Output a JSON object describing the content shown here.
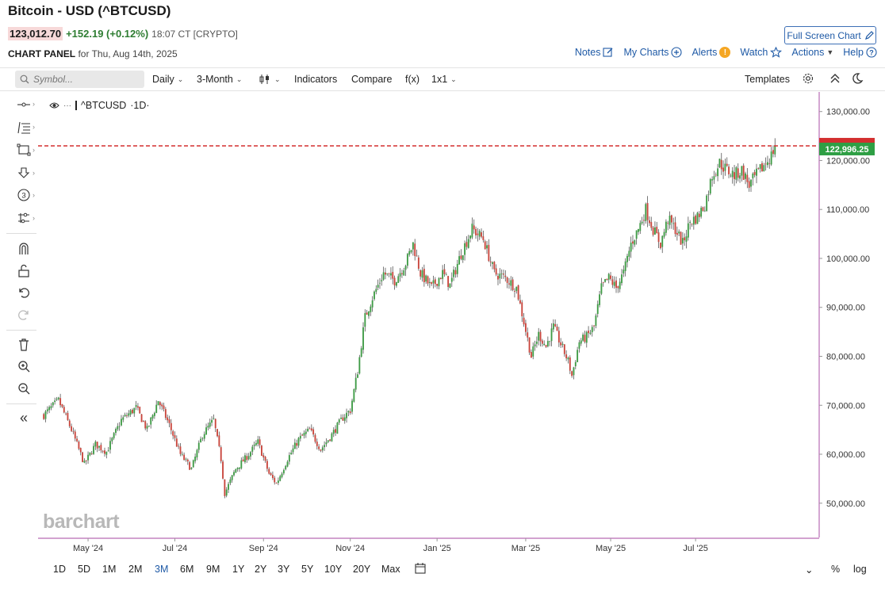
{
  "header": {
    "title": "Bitcoin - USD (^BTCUSD)",
    "price": "123,012.70",
    "change": "+152.19 (+0.12%)",
    "time": "18:07 CT [CRYPTO]",
    "fullscreen_label": "Full Screen Chart"
  },
  "panel": {
    "label": "CHART PANEL",
    "date": "for Thu, Aug 14th, 2025"
  },
  "top_links": {
    "notes": "Notes",
    "my_charts": "My Charts",
    "alerts": "Alerts",
    "alerts_badge": "!",
    "watch": "Watch",
    "actions": "Actions",
    "help": "Help"
  },
  "toolbar": {
    "symbol_placeholder": "Symbol...",
    "interval": "Daily",
    "period": "3-Month",
    "indicators": "Indicators",
    "compare": "Compare",
    "fx": "f(x)",
    "layout": "1x1",
    "templates": "Templates"
  },
  "legend": {
    "symbol": "^BTCUSD",
    "interval": "·1D·"
  },
  "watermark": "barchart",
  "bottom": {
    "ranges": [
      "1D",
      "5D",
      "1M",
      "2M",
      "3M",
      "6M",
      "9M",
      "1Y",
      "2Y",
      "3Y",
      "5Y",
      "10Y",
      "20Y",
      "Max"
    ],
    "active_range": "3M",
    "percent": "%",
    "log": "log"
  },
  "colors": {
    "up": "#3f9b46",
    "down": "#c9463d",
    "price_line": "#d32f2f",
    "price_tag_bg": "#2e9f44",
    "axis_line": "#b86bb5",
    "accent": "#1f5aa6"
  },
  "chart_data": {
    "type": "candlestick",
    "current_price_label": "122,996.25",
    "current_price": 122996.25,
    "ylim": [
      43000,
      134000
    ],
    "y_ticks": [
      {
        "value": 50000,
        "label": "50,000.00"
      },
      {
        "value": 60000,
        "label": "60,000.00"
      },
      {
        "value": 70000,
        "label": "70,000.00"
      },
      {
        "value": 80000,
        "label": "80,000.00"
      },
      {
        "value": 90000,
        "label": "90,000.00"
      },
      {
        "value": 100000,
        "label": "100,000.00"
      },
      {
        "value": 110000,
        "label": "110,000.00"
      },
      {
        "value": 120000,
        "label": "120,000.00"
      },
      {
        "value": 130000,
        "label": "130,000.00"
      }
    ],
    "x_ticks": [
      {
        "label": "May '24",
        "index": 24
      },
      {
        "label": "Jul '24",
        "index": 71
      },
      {
        "label": "Sep '24",
        "index": 119
      },
      {
        "label": "Nov '24",
        "index": 166
      },
      {
        "label": "Jan '25",
        "index": 213
      },
      {
        "label": "Mar '25",
        "index": 261
      },
      {
        "label": "May '25",
        "index": 307
      },
      {
        "label": "Jul '25",
        "index": 353
      }
    ],
    "total_bars": 420,
    "anchors": [
      [
        0,
        68000
      ],
      [
        8,
        71000
      ],
      [
        15,
        65000
      ],
      [
        22,
        58000
      ],
      [
        28,
        62000
      ],
      [
        34,
        60500
      ],
      [
        42,
        67000
      ],
      [
        50,
        69500
      ],
      [
        56,
        65000
      ],
      [
        62,
        71000
      ],
      [
        68,
        66000
      ],
      [
        74,
        60000
      ],
      [
        80,
        57000
      ],
      [
        86,
        64000
      ],
      [
        92,
        67000
      ],
      [
        96,
        59000
      ],
      [
        98,
        52000
      ],
      [
        104,
        57000
      ],
      [
        110,
        59500
      ],
      [
        116,
        62500
      ],
      [
        122,
        56000
      ],
      [
        126,
        54000
      ],
      [
        132,
        59000
      ],
      [
        138,
        63000
      ],
      [
        144,
        65000
      ],
      [
        150,
        61000
      ],
      [
        156,
        64000
      ],
      [
        162,
        67500
      ],
      [
        166,
        69000
      ],
      [
        170,
        77000
      ],
      [
        174,
        88000
      ],
      [
        178,
        92000
      ],
      [
        184,
        97000
      ],
      [
        190,
        95500
      ],
      [
        196,
        99000
      ],
      [
        200,
        103000
      ],
      [
        204,
        97000
      ],
      [
        210,
        94000
      ],
      [
        216,
        97000
      ],
      [
        220,
        94500
      ],
      [
        226,
        101000
      ],
      [
        232,
        106000
      ],
      [
        238,
        104000
      ],
      [
        244,
        97000
      ],
      [
        250,
        96000
      ],
      [
        256,
        94000
      ],
      [
        260,
        87000
      ],
      [
        264,
        80000
      ],
      [
        268,
        84500
      ],
      [
        272,
        82000
      ],
      [
        276,
        86000
      ],
      [
        280,
        82500
      ],
      [
        284,
        79000
      ],
      [
        286,
        76000
      ],
      [
        290,
        83000
      ],
      [
        294,
        84000
      ],
      [
        298,
        86000
      ],
      [
        302,
        94000
      ],
      [
        306,
        96000
      ],
      [
        310,
        94000
      ],
      [
        314,
        97000
      ],
      [
        318,
        103000
      ],
      [
        322,
        106000
      ],
      [
        326,
        110000
      ],
      [
        330,
        106000
      ],
      [
        334,
        103000
      ],
      [
        338,
        108000
      ],
      [
        342,
        106000
      ],
      [
        346,
        103000
      ],
      [
        350,
        107500
      ],
      [
        354,
        108500
      ],
      [
        358,
        111000
      ],
      [
        362,
        117000
      ],
      [
        366,
        119500
      ],
      [
        370,
        118000
      ],
      [
        374,
        117000
      ],
      [
        378,
        118000
      ],
      [
        382,
        115000
      ],
      [
        386,
        117000
      ],
      [
        390,
        119000
      ],
      [
        394,
        121000
      ],
      [
        396,
        122996
      ]
    ]
  }
}
